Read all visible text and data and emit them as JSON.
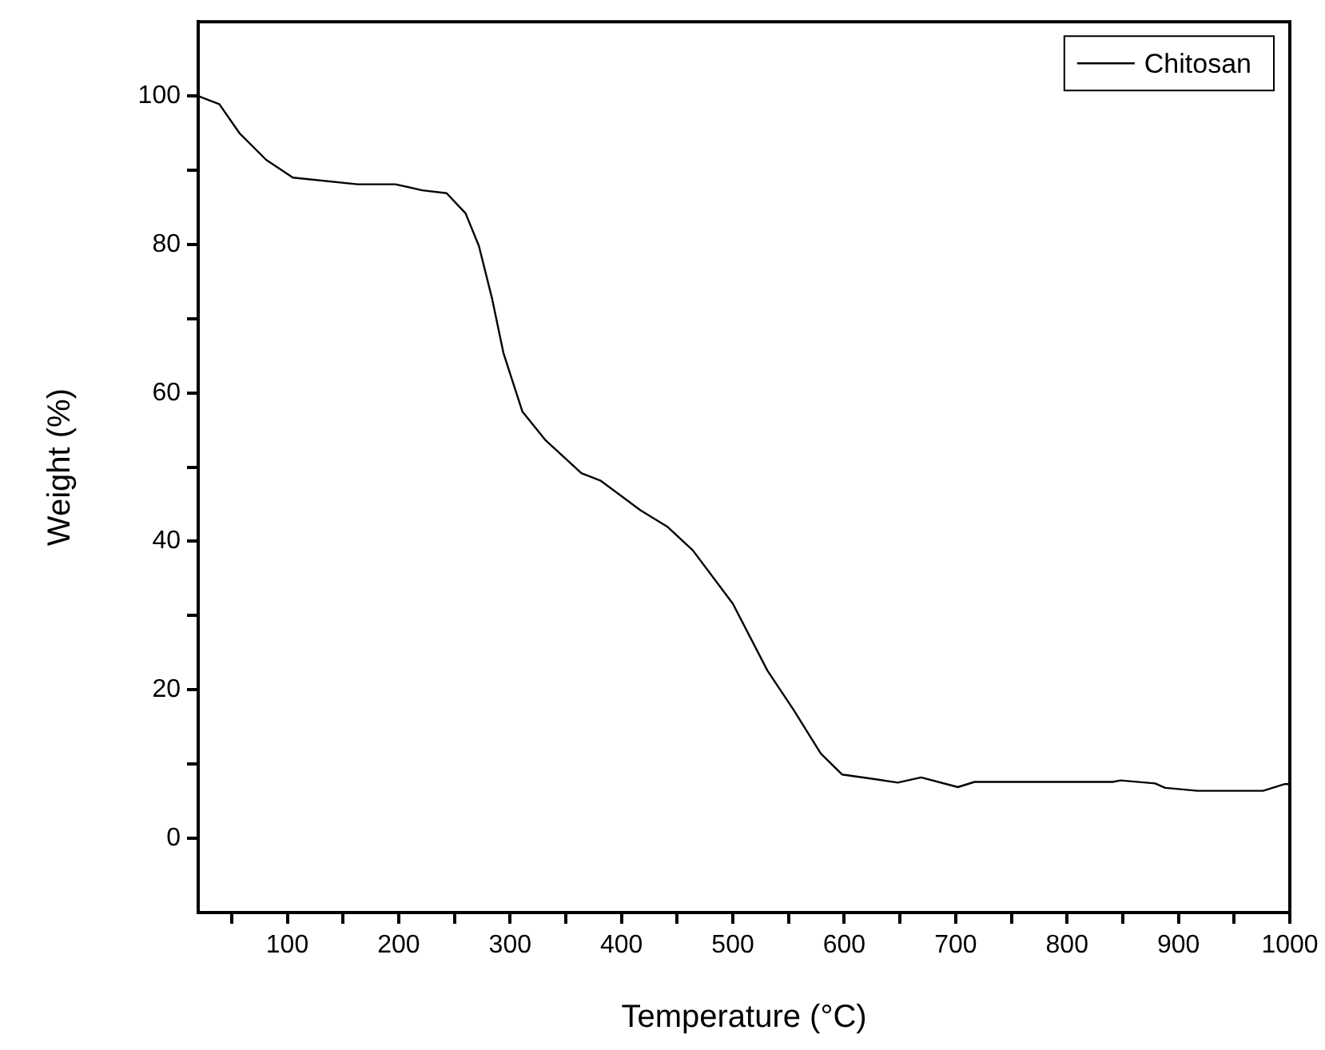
{
  "chart_data": {
    "type": "line",
    "xlabel": "Temperature (°C)",
    "ylabel": "Weight (%)",
    "xlim": [
      20,
      1000
    ],
    "ylim": [
      -10,
      110
    ],
    "xticks": [
      {
        "value": 50,
        "label": null
      },
      100,
      {
        "value": 150,
        "label": null
      },
      200,
      {
        "value": 250,
        "label": null
      },
      300,
      {
        "value": 350,
        "label": null
      },
      400,
      {
        "value": 450,
        "label": null
      },
      500,
      {
        "value": 550,
        "label": null
      },
      600,
      {
        "value": 650,
        "label": null
      },
      700,
      {
        "value": 750,
        "label": null
      },
      800,
      {
        "value": 850,
        "label": null
      },
      900,
      {
        "value": 950,
        "label": null
      },
      1000
    ],
    "yticks": [
      0,
      {
        "value": 10,
        "label": null
      },
      20,
      {
        "value": 30,
        "label": null
      },
      40,
      {
        "value": 50,
        "label": null
      },
      60,
      {
        "value": 70,
        "label": null
      },
      80,
      {
        "value": 90,
        "label": null
      },
      100
    ],
    "legend": "top right",
    "grid": false,
    "marker": "none",
    "line_style": "solid",
    "series": [
      {
        "name": "Chitosan",
        "color": "#000000",
        "x": [
          20,
          39,
          57,
          81,
          105,
          163,
          197,
          221,
          243,
          260,
          272,
          284,
          294,
          311,
          332,
          364,
          381,
          417,
          441,
          464,
          500,
          531,
          555,
          579,
          598,
          626,
          648,
          669,
          702,
          717,
          841,
          848,
          879,
          888,
          917,
          976,
          995,
          1000
        ],
        "values": [
          100,
          98.9,
          95,
          91.4,
          89,
          88.1,
          88.1,
          87.3,
          86.9,
          84.2,
          79.8,
          72.6,
          65.4,
          57.5,
          53.6,
          49.2,
          48.2,
          44.2,
          42,
          38.8,
          31.6,
          22.6,
          17.2,
          11.4,
          8.6,
          8,
          7.5,
          8.2,
          6.9,
          7.6,
          7.6,
          7.8,
          7.4,
          6.8,
          6.4,
          6.4,
          7.3,
          7.3
        ]
      }
    ]
  }
}
